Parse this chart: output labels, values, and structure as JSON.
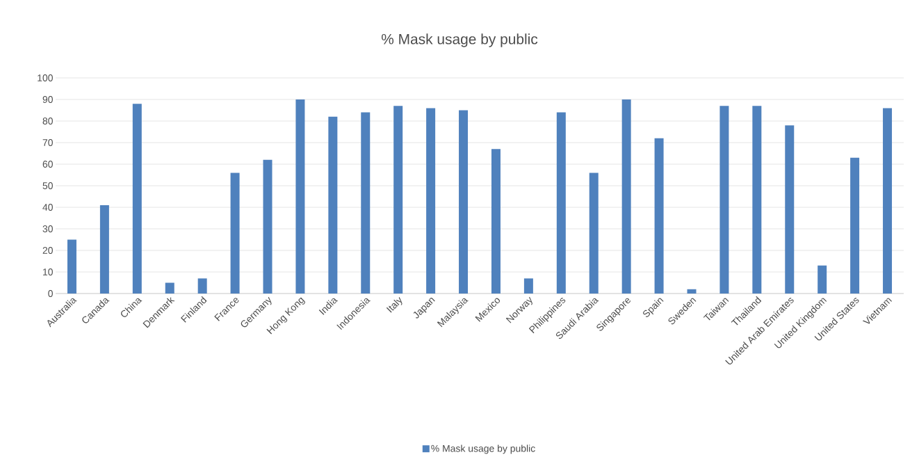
{
  "chart_data": {
    "type": "bar",
    "title": "% Mask usage by public",
    "categories": [
      "Australia",
      "Canada",
      "China",
      "Denmark",
      "Finland",
      "France",
      "Germany",
      "Hong Kong",
      "India",
      "Indonesia",
      "Italy",
      "Japan",
      "Malaysia",
      "Mexico",
      "Norway",
      "Philippines",
      "Saudi Arabia",
      "Singapore",
      "Spain",
      "Sweden",
      "Taiwan",
      "Thailand",
      "United Arab Emirates",
      "United Kingdom",
      "United States",
      "Vietnam"
    ],
    "series": [
      {
        "name": "% Mask usage by public",
        "color": "#4f81bd",
        "values": [
          25,
          41,
          88,
          5,
          7,
          56,
          62,
          90,
          82,
          84,
          87,
          86,
          85,
          67,
          7,
          84,
          56,
          90,
          72,
          2,
          87,
          87,
          78,
          13,
          63,
          86
        ]
      }
    ],
    "ylim": [
      0,
      100
    ],
    "yticks": [
      0,
      10,
      20,
      30,
      40,
      50,
      60,
      70,
      80,
      90,
      100
    ],
    "grid": "y",
    "legend": "bottom"
  }
}
